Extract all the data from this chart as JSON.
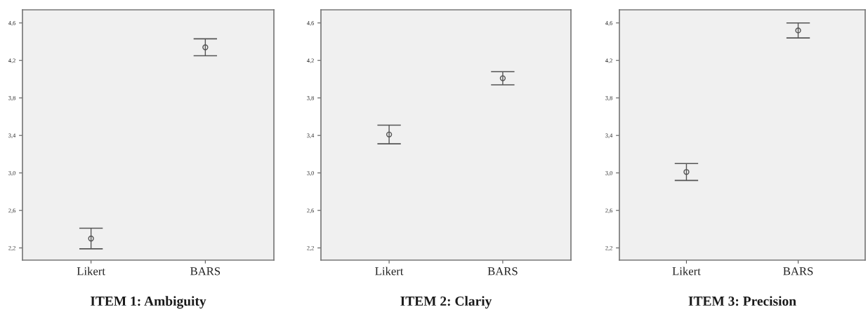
{
  "chart_data": [
    {
      "type": "scatter",
      "title": "ITEM 1: Ambiguity",
      "categories": [
        "Likert",
        "BARS"
      ],
      "values": [
        2.3,
        4.34
      ],
      "errors": [
        0.11,
        0.09
      ],
      "color": "#555555",
      "marker": "circle",
      "ylim": [
        2.07,
        4.74
      ],
      "yticks": [
        {
          "value": 2.2,
          "label": "2,2"
        },
        {
          "value": 2.6,
          "label": "2,6"
        },
        {
          "value": 3.0,
          "label": "3,0"
        },
        {
          "value": 3.4,
          "label": "3,4"
        },
        {
          "value": 3.8,
          "label": "3,8"
        },
        {
          "value": 4.2,
          "label": "4,2"
        },
        {
          "value": 4.6,
          "label": "4,6"
        }
      ],
      "grid": false
    },
    {
      "type": "scatter",
      "title": "ITEM 2: Clariy",
      "categories": [
        "Likert",
        "BARS"
      ],
      "values": [
        3.41,
        4.01
      ],
      "errors": [
        0.1,
        0.07
      ],
      "color": "#555555",
      "marker": "circle",
      "ylim": [
        2.07,
        4.74
      ],
      "yticks": [
        {
          "value": 2.2,
          "label": "2,2"
        },
        {
          "value": 2.6,
          "label": "2,6"
        },
        {
          "value": 3.0,
          "label": "3,0"
        },
        {
          "value": 3.4,
          "label": "3,4"
        },
        {
          "value": 3.8,
          "label": "3,8"
        },
        {
          "value": 4.2,
          "label": "4,2"
        },
        {
          "value": 4.6,
          "label": "4,6"
        }
      ],
      "grid": false
    },
    {
      "type": "scatter",
      "title": "ITEM 3: Precision",
      "categories": [
        "Likert",
        "BARS"
      ],
      "values": [
        3.01,
        4.52
      ],
      "errors": [
        0.09,
        0.08
      ],
      "color": "#555555",
      "marker": "circle",
      "ylim": [
        2.07,
        4.74
      ],
      "yticks": [
        {
          "value": 2.2,
          "label": "2,2"
        },
        {
          "value": 2.6,
          "label": "2,6"
        },
        {
          "value": 3.0,
          "label": "3,0"
        },
        {
          "value": 3.4,
          "label": "3,4"
        },
        {
          "value": 3.8,
          "label": "3,8"
        },
        {
          "value": 4.2,
          "label": "4,2"
        },
        {
          "value": 4.6,
          "label": "4,6"
        }
      ],
      "grid": false
    }
  ]
}
